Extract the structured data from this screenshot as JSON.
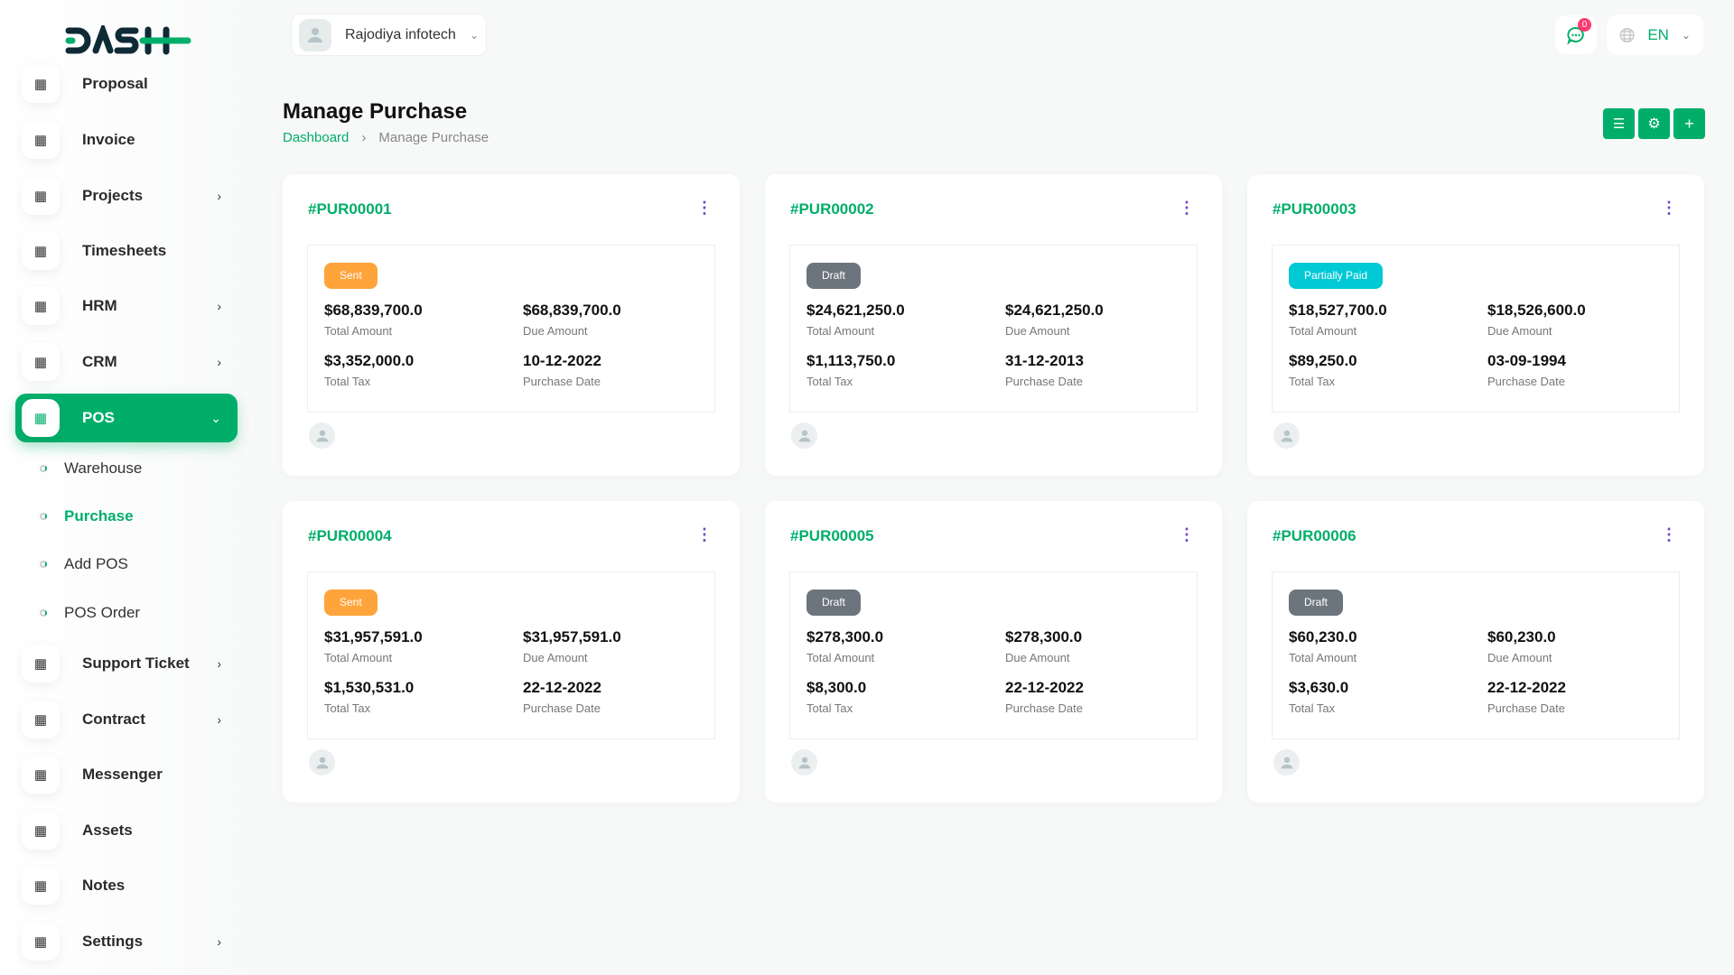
{
  "brand": {
    "logo_text": "DASH",
    "accent": "#00ae6a"
  },
  "header": {
    "company": "Rajodiya infotech",
    "notifications": "0",
    "language": "EN"
  },
  "sidebar": {
    "items": [
      {
        "label": "Proposal",
        "icon": "proposal-icon",
        "chevron": false
      },
      {
        "label": "Invoice",
        "icon": "file-icon",
        "chevron": false
      },
      {
        "label": "Projects",
        "icon": "check-square-icon",
        "chevron": true
      },
      {
        "label": "Timesheets",
        "icon": "clock-icon",
        "chevron": false
      },
      {
        "label": "HRM",
        "icon": "hrm-icon",
        "chevron": true
      },
      {
        "label": "CRM",
        "icon": "crm-icon",
        "chevron": true
      },
      {
        "label": "POS",
        "icon": "pos-icon",
        "chevron": true,
        "active": true
      },
      {
        "label": "Support Ticket",
        "icon": "headphones-icon",
        "chevron": true
      },
      {
        "label": "Contract",
        "icon": "contract-icon",
        "chevron": true
      },
      {
        "label": "Messenger",
        "icon": "message-icon",
        "chevron": false
      },
      {
        "label": "Assets",
        "icon": "calculator-icon",
        "chevron": false
      },
      {
        "label": "Notes",
        "icon": "calendar-icon",
        "chevron": false
      },
      {
        "label": "Settings",
        "icon": "gear-icon",
        "chevron": true
      }
    ],
    "sub_items": [
      "Warehouse",
      "Purchase",
      "Add POS",
      "POS Order"
    ],
    "active_sub": "Purchase"
  },
  "page": {
    "title": "Manage Purchase",
    "breadcrumb": [
      "Dashboard",
      "Manage Purchase"
    ]
  },
  "labels": {
    "total_amount": "Total Amount",
    "due_amount": "Due Amount",
    "total_tax": "Total Tax",
    "purchase_date": "Purchase Date"
  },
  "status_colors": {
    "Sent": "#ffa43a",
    "Draft": "#6c757d",
    "Partially Paid": "#00c9d6"
  },
  "purchases": [
    {
      "id": "#PUR00001",
      "status": "Sent",
      "total": "$68,839,700.0",
      "due": "$68,839,700.0",
      "tax": "$3,352,000.0",
      "date": "10-12-2022"
    },
    {
      "id": "#PUR00002",
      "status": "Draft",
      "total": "$24,621,250.0",
      "due": "$24,621,250.0",
      "tax": "$1,113,750.0",
      "date": "31-12-2013"
    },
    {
      "id": "#PUR00003",
      "status": "Partially Paid",
      "total": "$18,527,700.0",
      "due": "$18,526,600.0",
      "tax": "$89,250.0",
      "date": "03-09-1994"
    },
    {
      "id": "#PUR00004",
      "status": "Sent",
      "total": "$31,957,591.0",
      "due": "$31,957,591.0",
      "tax": "$1,530,531.0",
      "date": "22-12-2022"
    },
    {
      "id": "#PUR00005",
      "status": "Draft",
      "total": "$278,300.0",
      "due": "$278,300.0",
      "tax": "$8,300.0",
      "date": "22-12-2022"
    },
    {
      "id": "#PUR00006",
      "status": "Draft",
      "total": "$60,230.0",
      "due": "$60,230.0",
      "tax": "$3,630.0",
      "date": "22-12-2022"
    }
  ]
}
